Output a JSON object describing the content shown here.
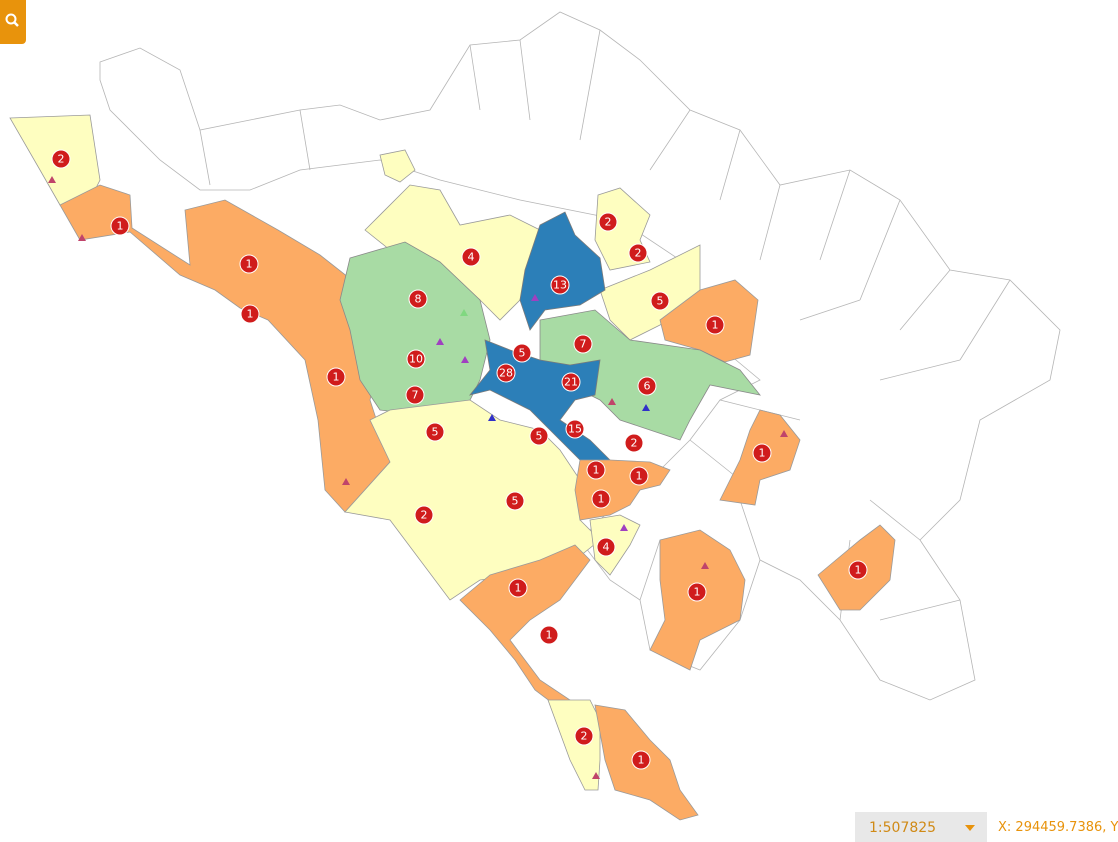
{
  "map": {
    "clusters": [
      2,
      1,
      1,
      1,
      4,
      8,
      13,
      2,
      2,
      5,
      1,
      10,
      1,
      7,
      5,
      28,
      21,
      6,
      7,
      5,
      5,
      15,
      2,
      1,
      1,
      1,
      1,
      2,
      5,
      4,
      1,
      1,
      1,
      1,
      2,
      1
    ]
  },
  "scale": "1:507825",
  "coordinates": "X: 294459.7386, Y"
}
